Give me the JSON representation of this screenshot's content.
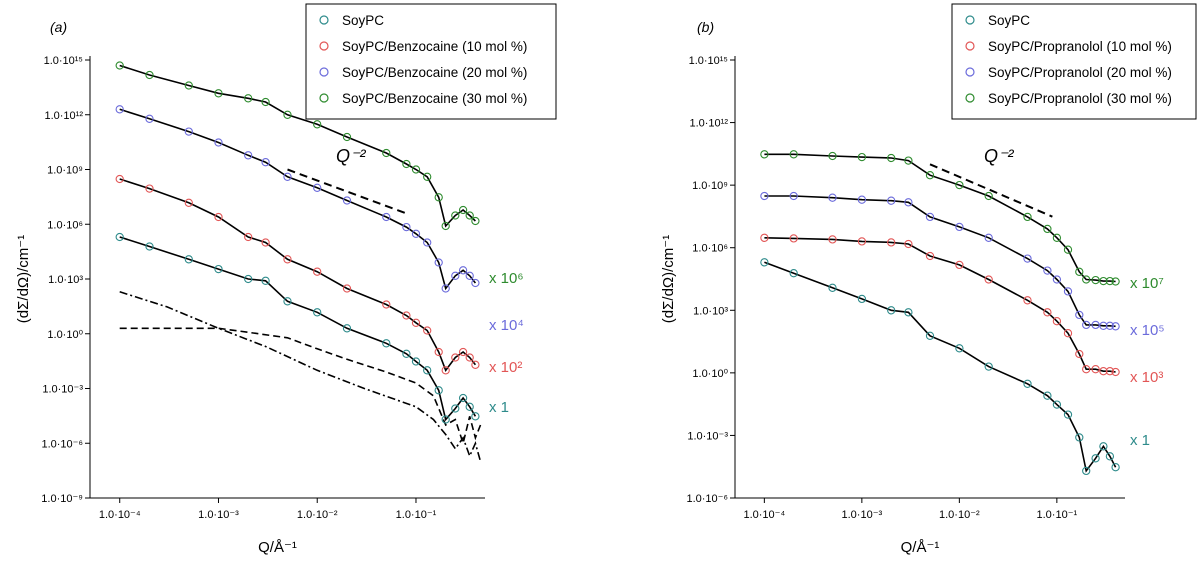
{
  "chart_data": [
    {
      "type": "scatter",
      "panel_label": "(a)",
      "xlabel": "Q/Å⁻¹",
      "ylabel": "(dΣ/dΩ)/cm⁻¹",
      "xscale": "log",
      "yscale": "log",
      "xlim": [
        5e-05,
        0.5
      ],
      "ylim": [
        1e-09,
        1000000000000000.0
      ],
      "xticks": [
        0.0001,
        0.001,
        0.01,
        0.1
      ],
      "xtick_labels": [
        "1.0·10⁻⁴",
        "1.0·10⁻³",
        "1.0·10⁻²",
        "1.0·10⁻¹"
      ],
      "yticks": [
        1e-09,
        1e-06,
        0.001,
        1,
        1000.0,
        1000000.0,
        1000000000.0,
        1000000000000.0,
        1000000000000000.0
      ],
      "ytick_labels": [
        "1.0·10⁻⁹",
        "1.0·10⁻⁶",
        "1.0·10⁻³",
        "1.0·10⁰",
        "1.0·10³",
        "1.0·10⁶",
        "1.0·10⁹",
        "1.0·10¹²",
        "1.0·10¹⁵"
      ],
      "legend_position": "top-right",
      "annotation": "Q⁻²",
      "slope_reference": {
        "exponent": -2,
        "x": [
          0.005,
          0.08
        ],
        "y_start": 1000000000.0
      },
      "series": [
        {
          "name": "SoyPC",
          "color": "#2e8b8b",
          "multiplier_label": "x 1",
          "scale": 1,
          "x": [
            0.0001,
            0.0002,
            0.0005,
            0.001,
            0.002,
            0.003,
            0.005,
            0.01,
            0.02,
            0.05,
            0.08,
            0.1,
            0.13,
            0.17,
            0.2,
            0.25,
            0.3,
            0.35,
            0.4
          ],
          "y": [
            200000,
            60000,
            12000,
            3500,
            1000,
            800,
            60,
            15,
            2,
            0.3,
            0.08,
            0.03,
            0.01,
            0.0008,
            2e-05,
            8e-05,
            0.0003,
            0.0001,
            3e-05
          ]
        },
        {
          "name": "SoyPC/Benzocaine (10 mol %)",
          "color": "#e25656",
          "multiplier_label": "x 10²",
          "scale": 100,
          "x": [
            0.0001,
            0.0002,
            0.0005,
            0.001,
            0.002,
            0.003,
            0.005,
            0.01,
            0.02,
            0.05,
            0.08,
            0.1,
            0.13,
            0.17,
            0.2,
            0.25,
            0.3,
            0.35,
            0.4
          ],
          "y": [
            300000000,
            90000000,
            15000000,
            2500000,
            200000,
            100000,
            12000,
            2500,
            300,
            40,
            10,
            4,
            1.5,
            0.1,
            0.01,
            0.05,
            0.1,
            0.05,
            0.02
          ]
        },
        {
          "name": "SoyPC/Benzocaine (20 mol %)",
          "color": "#6b6bdb",
          "multiplier_label": "x 10⁴",
          "scale": 10000,
          "x": [
            0.0001,
            0.0002,
            0.0005,
            0.001,
            0.002,
            0.003,
            0.005,
            0.01,
            0.02,
            0.05,
            0.08,
            0.1,
            0.13,
            0.17,
            0.2,
            0.25,
            0.3,
            0.35,
            0.4
          ],
          "y": [
            2000000000000,
            600000000000,
            120000000000,
            30000000000,
            6000000000,
            2500000000,
            400000000,
            100000000,
            20000000,
            2500000,
            700000,
            300000,
            100000,
            8000,
            300,
            1500,
            3000,
            1500,
            600
          ]
        },
        {
          "name": "SoyPC/Benzocaine (30 mol %)",
          "color": "#2e8b2e",
          "multiplier_label": "x 10⁶",
          "scale": 1000000,
          "x": [
            0.0001,
            0.0002,
            0.0005,
            0.001,
            0.002,
            0.003,
            0.005,
            0.01,
            0.02,
            0.05,
            0.08,
            0.1,
            0.13,
            0.17,
            0.2,
            0.25,
            0.3,
            0.35,
            0.4
          ],
          "y": [
            500000000000000,
            150000000000000,
            40000000000000,
            15000000000000,
            8000000000000,
            5000000000000,
            1000000000000,
            300000000000,
            60000000000,
            8000000000,
            2000000000,
            1000000000,
            400000000,
            30000000,
            800000,
            3000000,
            6000000,
            3000000,
            1500000
          ]
        }
      ],
      "extra_lines": [
        {
          "style": "dashed",
          "x": [
            0.0001,
            0.001,
            0.002,
            0.005,
            0.01,
            0.02,
            0.05,
            0.1,
            0.15,
            0.2,
            0.25,
            0.3,
            0.35,
            0.4,
            0.45
          ],
          "y": [
            2,
            2,
            1.2,
            0.6,
            0.15,
            0.04,
            0.008,
            0.002,
            0.0004,
            1e-05,
            2e-05,
            1e-06,
            3e-05,
            2e-06,
            1e-05
          ]
        },
        {
          "style": "dash-dot",
          "x": [
            0.0001,
            0.0003,
            0.001,
            0.003,
            0.01,
            0.03,
            0.1,
            0.15,
            0.2,
            0.25,
            0.3,
            0.35,
            0.4,
            0.45
          ],
          "y": [
            200,
            30,
            2,
            0.2,
            0.01,
            0.001,
            0.0001,
            2e-05,
            3e-06,
            5e-07,
            2e-06,
            2e-07,
            1e-06,
            1e-07
          ]
        }
      ]
    },
    {
      "type": "scatter",
      "panel_label": "(b)",
      "xlabel": "Q/Å⁻¹",
      "ylabel": "(dΣ/dΩ)/cm⁻¹",
      "xscale": "log",
      "yscale": "log",
      "xlim": [
        5e-05,
        0.5
      ],
      "ylim": [
        1e-06,
        1000000000000000.0
      ],
      "xticks": [
        0.0001,
        0.001,
        0.01,
        0.1
      ],
      "xtick_labels": [
        "1.0·10⁻⁴",
        "1.0·10⁻³",
        "1.0·10⁻²",
        "1.0·10⁻¹"
      ],
      "yticks": [
        1e-06,
        0.001,
        1,
        1000.0,
        1000000.0,
        1000000000.0,
        1000000000000.0,
        1000000000000000.0
      ],
      "ytick_labels": [
        "1.0·10⁻⁶",
        "1.0·10⁻³",
        "1.0·10⁰",
        "1.0·10³",
        "1.0·10⁶",
        "1.0·10⁹",
        "1.0·10¹²",
        "1.0·10¹⁵"
      ],
      "legend_position": "top-right",
      "annotation": "Q⁻²",
      "slope_reference": {
        "exponent": -2,
        "x": [
          0.005,
          0.09
        ],
        "y_start": 10000000000.0
      },
      "series": [
        {
          "name": "SoyPC",
          "color": "#2e8b8b",
          "multiplier_label": "x 1",
          "scale": 1,
          "x": [
            0.0001,
            0.0002,
            0.0005,
            0.001,
            0.002,
            0.003,
            0.005,
            0.01,
            0.02,
            0.05,
            0.08,
            0.1,
            0.13,
            0.17,
            0.2,
            0.25,
            0.3,
            0.35,
            0.4
          ],
          "y": [
            200000,
            60000,
            12000,
            3500,
            1000,
            800,
            60,
            15,
            2,
            0.3,
            0.08,
            0.03,
            0.01,
            0.0008,
            2e-05,
            8e-05,
            0.0003,
            0.0001,
            3e-05
          ]
        },
        {
          "name": "SoyPC/Propranolol (10 mol %)",
          "color": "#e25656",
          "multiplier_label": "x 10³",
          "scale": 1000,
          "x": [
            0.0001,
            0.0002,
            0.0005,
            0.001,
            0.002,
            0.003,
            0.005,
            0.01,
            0.02,
            0.05,
            0.08,
            0.1,
            0.13,
            0.17,
            0.2,
            0.25,
            0.3,
            0.35,
            0.4
          ],
          "y": [
            3000000,
            2800000,
            2500000,
            2000000,
            1800000,
            1500000,
            400000,
            150000,
            30000,
            3000,
            800,
            300,
            80,
            8,
            1.5,
            1.5,
            1.2,
            1.2,
            1.1
          ]
        },
        {
          "name": "SoyPC/Propranolol (20 mol %)",
          "color": "#6b6bdb",
          "multiplier_label": "x 10⁵",
          "scale": 100000,
          "x": [
            0.0001,
            0.0002,
            0.0005,
            0.001,
            0.002,
            0.003,
            0.005,
            0.01,
            0.02,
            0.05,
            0.08,
            0.1,
            0.13,
            0.17,
            0.2,
            0.25,
            0.3,
            0.35,
            0.4
          ],
          "y": [
            300000000,
            300000000,
            250000000,
            200000000,
            180000000,
            150000000,
            30000000,
            10000000,
            3000000,
            300000,
            80000,
            30000,
            8000,
            600,
            200,
            200,
            180,
            180,
            170
          ]
        },
        {
          "name": "SoyPC/Propranolol (30 mol %)",
          "color": "#2e8b2e",
          "multiplier_label": "x 10⁷",
          "scale": 10000000,
          "x": [
            0.0001,
            0.0002,
            0.0005,
            0.001,
            0.002,
            0.003,
            0.005,
            0.01,
            0.02,
            0.05,
            0.08,
            0.1,
            0.13,
            0.17,
            0.2,
            0.25,
            0.3,
            0.35,
            0.4
          ],
          "y": [
            30000000000,
            30000000000,
            25000000000,
            22000000000,
            20000000000,
            15000000000,
            3000000000,
            1000000000,
            300000000,
            30000000,
            8000000,
            3000000,
            800000,
            70000,
            30000,
            28000,
            25000,
            25000,
            24000
          ]
        }
      ],
      "extra_lines": []
    }
  ]
}
